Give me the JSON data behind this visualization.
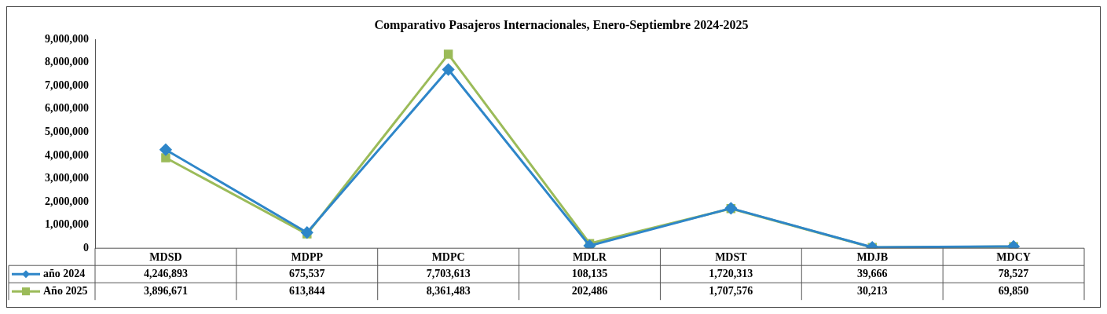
{
  "chart_data": {
    "type": "line",
    "title": "Comparativo Pasajeros Internacionales, Enero-Septiembre 2024-2025",
    "categories": [
      "MDSD",
      "MDPP",
      "MDPC",
      "MDLR",
      "MDST",
      "MDJB",
      "MDCY"
    ],
    "series": [
      {
        "name": "año 2024",
        "color": "#2e86c9",
        "marker": "diamond",
        "values": [
          4246893,
          675537,
          7703613,
          108135,
          1720313,
          39666,
          78527
        ],
        "value_labels": [
          "4,246,893",
          "675,537",
          "7,703,613",
          "108,135",
          "1,720,313",
          "39,666",
          "78,527"
        ]
      },
      {
        "name": "Año 2025",
        "color": "#9bbb59",
        "marker": "square",
        "values": [
          3896671,
          613844,
          8361483,
          202486,
          1707576,
          30213,
          69850
        ],
        "value_labels": [
          "3,896,671",
          "613,844",
          "8,361,483",
          "202,486",
          "1,707,576",
          "30,213",
          "69,850"
        ]
      }
    ],
    "ylim": [
      0,
      9000000
    ],
    "yticks": [
      {
        "value": 0,
        "label": "0"
      },
      {
        "value": 1000000,
        "label": "1,000,000"
      },
      {
        "value": 2000000,
        "label": "2,000,000"
      },
      {
        "value": 3000000,
        "label": "3,000,000"
      },
      {
        "value": 4000000,
        "label": "4,000,000"
      },
      {
        "value": 5000000,
        "label": "5,000,000"
      },
      {
        "value": 6000000,
        "label": "6,000,000"
      },
      {
        "value": 7000000,
        "label": "7,000,000"
      },
      {
        "value": 8000000,
        "label": "8,000,000"
      },
      {
        "value": 9000000,
        "label": "9,000,000"
      }
    ],
    "legend": "bottom",
    "grid": false
  }
}
